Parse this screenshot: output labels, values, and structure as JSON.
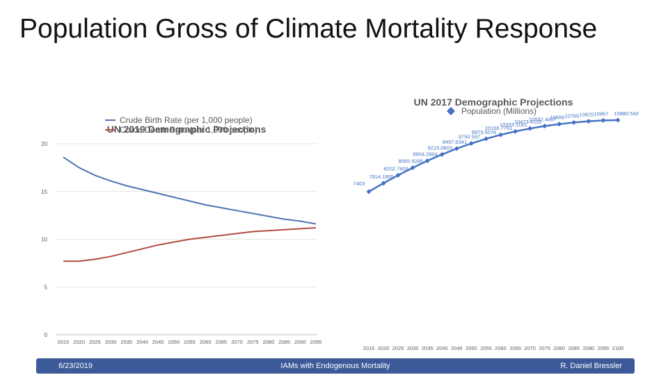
{
  "slide": {
    "title": "Population Gross of Climate Mortality Response"
  },
  "footer": {
    "date": "6/23/2019",
    "center": "IAMs with Endogenous Mortality",
    "author": "R. Daniel Bressler"
  },
  "chart_data": [
    {
      "type": "line",
      "title": "UN 2019 Demographic Projections",
      "x": [
        2015,
        2020,
        2025,
        2030,
        2035,
        2040,
        2045,
        2050,
        2055,
        2060,
        2065,
        2070,
        2075,
        2080,
        2085,
        2090,
        2095
      ],
      "series": [
        {
          "name": "Crude Birth Rate (per 1,000 people)",
          "color": "#4f73b0",
          "values": [
            18.6,
            17.5,
            16.7,
            16.1,
            15.6,
            15.2,
            14.8,
            14.4,
            14.0,
            13.6,
            13.3,
            13.0,
            12.7,
            12.4,
            12.1,
            11.9,
            11.6
          ]
        },
        {
          "name": "Crude Death Rate (per 1,000 people)",
          "color": "#b34a43",
          "values": [
            7.7,
            7.7,
            7.9,
            8.2,
            8.6,
            9.0,
            9.4,
            9.7,
            10.0,
            10.2,
            10.4,
            10.6,
            10.8,
            10.9,
            11.0,
            11.1,
            11.2
          ]
        }
      ],
      "yticks": [
        0,
        5,
        10,
        15,
        20
      ],
      "ylim": [
        0,
        20
      ],
      "grid": true,
      "legend": "top"
    },
    {
      "type": "line",
      "title": "UN 2017 Demographic Projections",
      "x": [
        2015,
        2020,
        2025,
        2030,
        2035,
        2040,
        2045,
        2050,
        2055,
        2060,
        2065,
        2070,
        2075,
        2080,
        2085,
        2090,
        2095,
        2100
      ],
      "series": [
        {
          "name": "Population (Millions)",
          "color": "#4472c4",
          "marker": "diamond",
          "values": [
            7403,
            7814.1955,
            8202.7609,
            8565.9288,
            8904.2804,
            9215.0603,
            9497.6341,
            9750.597,
            9973.5076,
            10166.7791,
            10333.1181,
            10473.4131,
            10592.4607,
            10689.0,
            10765.0,
            10825.0,
            10867.0,
            10880.542
          ]
        }
      ],
      "labels": [
        "7403",
        "7814.1955",
        "8202.7609",
        "8565.9288",
        "8904.2804",
        "9215.0603",
        "9497.6341",
        "9750.597",
        "9973.5076",
        "10166.7791",
        "10333.1181",
        "10473.4131",
        "10592.4607",
        "10689",
        "10765",
        "10825",
        "10867",
        "10880.542"
      ],
      "legend": "top"
    }
  ]
}
